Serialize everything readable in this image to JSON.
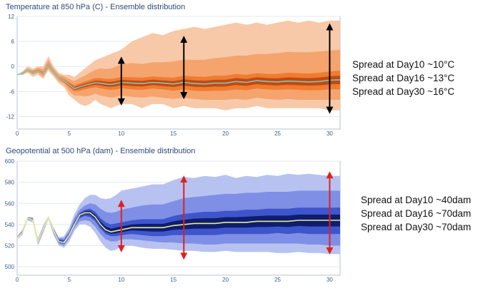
{
  "chart_data": [
    {
      "type": "area",
      "title": "Temperature at 850 hPa (C) - Ensemble distribution",
      "x": [
        0,
        0.5,
        1,
        1.5,
        2,
        2.5,
        3,
        3.5,
        4,
        4.5,
        5,
        5.5,
        6,
        6.5,
        7,
        7.5,
        8,
        8.5,
        9,
        9.5,
        10,
        11,
        12,
        13,
        14,
        15,
        16,
        17,
        18,
        19,
        20,
        21,
        22,
        23,
        24,
        25,
        26,
        27,
        28,
        29,
        30,
        31
      ],
      "xticks": [
        0,
        5,
        10,
        15,
        20,
        25,
        30
      ],
      "yticks": [
        12,
        6,
        0,
        -6,
        -12
      ],
      "ylim": [
        -15,
        12
      ],
      "xlim": [
        0,
        31
      ],
      "series": [
        {
          "role": "p0",
          "values": [
            -2,
            -2,
            -1.5,
            -2.5,
            -2,
            -3,
            -1,
            -2.5,
            -4,
            -5,
            -7,
            -8,
            -9,
            -9.5,
            -9,
            -8,
            -9,
            -9.5,
            -10,
            -9.5,
            -9,
            -9,
            -10,
            -9,
            -9,
            -10,
            -9.5,
            -10,
            -10,
            -10,
            -10.5,
            -10,
            -10,
            -9.5,
            -10,
            -10,
            -10,
            -10,
            -10,
            -10,
            -10.5,
            -10.5
          ]
        },
        {
          "role": "p10",
          "values": [
            -2,
            -2,
            -1.2,
            -2,
            -1.5,
            -2.5,
            -0.5,
            -2,
            -3.5,
            -4.2,
            -6,
            -7,
            -7,
            -7.2,
            -7,
            -6.5,
            -7,
            -7.2,
            -7.5,
            -7.3,
            -7,
            -7.3,
            -7.5,
            -7.2,
            -7.5,
            -7.8,
            -7.5,
            -7.8,
            -8,
            -8,
            -8,
            -7.8,
            -8,
            -7.5,
            -7.8,
            -8,
            -7.8,
            -8,
            -8,
            -8,
            -8,
            -8
          ]
        },
        {
          "role": "p25",
          "values": [
            -2,
            -1.8,
            -1,
            -1.8,
            -1.2,
            -2,
            0,
            -1.5,
            -3,
            -3.8,
            -5,
            -6,
            -5.8,
            -5.5,
            -5.2,
            -5,
            -5.2,
            -5.5,
            -5.6,
            -5.5,
            -5.2,
            -5.5,
            -5.6,
            -5.3,
            -5.5,
            -5.8,
            -5.5,
            -5.8,
            -5.9,
            -5.8,
            -5.8,
            -5.5,
            -5.7,
            -5.3,
            -5.5,
            -5.6,
            -5.5,
            -5.6,
            -5.7,
            -5.7,
            -5.5,
            -5.5
          ]
        },
        {
          "role": "p75",
          "values": [
            -2,
            -1.5,
            -0.7,
            -1.3,
            -0.7,
            -1.3,
            0.8,
            -1,
            -2.5,
            -3,
            -3.8,
            -4.5,
            -4,
            -3.6,
            -3.2,
            -2.8,
            -2.8,
            -3,
            -3,
            -2.8,
            -2.5,
            -2.6,
            -2.7,
            -2.4,
            -2.6,
            -2.7,
            -2.2,
            -2.4,
            -2.5,
            -2.2,
            -2.2,
            -1.8,
            -2,
            -1.6,
            -1.8,
            -1.8,
            -1.5,
            -1.6,
            -1.7,
            -1.5,
            -1.2,
            -1
          ]
        },
        {
          "role": "p90",
          "values": [
            -2,
            -1.4,
            -0.4,
            -0.9,
            -0.3,
            -0.7,
            1.6,
            -0.5,
            -2,
            -2.4,
            -3,
            -3.5,
            -2.8,
            -2.2,
            -1.5,
            -0.8,
            -0.5,
            -0.6,
            -0.5,
            0,
            0.5,
            0.8,
            0.6,
            1,
            1,
            1.2,
            1.6,
            1.6,
            1.6,
            2,
            2.2,
            2.6,
            2.6,
            3,
            3,
            3.2,
            3.5,
            3.4,
            3.4,
            3.6,
            3.8,
            4
          ]
        },
        {
          "role": "p100",
          "values": [
            -2,
            -1.2,
            0,
            -0.5,
            0,
            0,
            2.5,
            0,
            -1.5,
            -2,
            -2,
            -2.5,
            -1.5,
            -0.5,
            0.5,
            1.5,
            2,
            2.5,
            3,
            3.5,
            4,
            6,
            7,
            8,
            7.5,
            8.5,
            9,
            9.5,
            9,
            9.5,
            10,
            10.5,
            10,
            10.5,
            10,
            10.5,
            11,
            10.5,
            11,
            10.5,
            11,
            11
          ]
        },
        {
          "role": "median",
          "values": [
            -2,
            -1.6,
            -0.8,
            -1.6,
            -1,
            -1.7,
            0.4,
            -1.3,
            -2.8,
            -3.4,
            -4.4,
            -5.3,
            -4.9,
            -4.5,
            -4.2,
            -3.9,
            -4,
            -4.2,
            -4.3,
            -4.1,
            -3.8,
            -4,
            -4.1,
            -3.8,
            -4,
            -4.2,
            -3.8,
            -4.1,
            -4.2,
            -4,
            -4,
            -3.6,
            -3.8,
            -3.4,
            -3.6,
            -3.7,
            -3.5,
            -3.6,
            -3.7,
            -3.6,
            -3.3,
            -3.2
          ]
        }
      ],
      "spread_arrows": [
        {
          "x": 10,
          "ymin": -8.5,
          "ymax": 1.5
        },
        {
          "x": 16,
          "ymin": -7,
          "ymax": 6.5
        },
        {
          "x": 30,
          "ymin": -10.5,
          "ymax": 9.5
        }
      ],
      "annotations": [
        "Spread at Day10 ~10°C",
        "Spread at Day16 ~13°C",
        "Spread at Day30 ~16°C"
      ],
      "colors": {
        "outer": "#f7c9a8",
        "p10": "#f5a46d",
        "p25": "#f07c32",
        "core": "#c04a10",
        "median": "#7fc7c0",
        "arrow": "#000000"
      }
    },
    {
      "type": "area",
      "title": "Geopotential at 500 hPa (dam) - Ensemble distribution",
      "x": [
        0,
        0.5,
        1,
        1.5,
        2,
        2.5,
        3,
        3.5,
        4,
        4.5,
        5,
        5.5,
        6,
        6.5,
        7,
        7.5,
        8,
        8.5,
        9,
        9.5,
        10,
        11,
        12,
        13,
        14,
        15,
        16,
        17,
        18,
        19,
        20,
        21,
        22,
        23,
        24,
        25,
        26,
        27,
        28,
        29,
        30,
        31
      ],
      "xticks": [
        0,
        5,
        10,
        15,
        20,
        25,
        30
      ],
      "yticks": [
        600,
        580,
        560,
        540,
        520,
        500
      ],
      "ylim": [
        492,
        600
      ],
      "xlim": [
        0,
        31
      ],
      "series": [
        {
          "role": "p0",
          "values": [
            526,
            530,
            544,
            542,
            520,
            532,
            545,
            530,
            520,
            518,
            524,
            534,
            540,
            540,
            538,
            532,
            524,
            518,
            515,
            516,
            520,
            520,
            518,
            517,
            517,
            516,
            515,
            515,
            514,
            514,
            515,
            514,
            514,
            514,
            514,
            513,
            513,
            514,
            513,
            513,
            512,
            512
          ]
        },
        {
          "role": "p10",
          "values": [
            527,
            531,
            545,
            543,
            522,
            534,
            546,
            532,
            522,
            520,
            527,
            537,
            543,
            544,
            543,
            538,
            531,
            526,
            524,
            524,
            526,
            526,
            525,
            524,
            523,
            523,
            522,
            522,
            521,
            521,
            522,
            522,
            522,
            522,
            522,
            522,
            522,
            522,
            521,
            521,
            520,
            520
          ]
        },
        {
          "role": "p25",
          "values": [
            527,
            532,
            545,
            544,
            523,
            535,
            546,
            533,
            523,
            522,
            529,
            539,
            546,
            548,
            547,
            543,
            536,
            531,
            529,
            529,
            530,
            531,
            530,
            529,
            529,
            530,
            530,
            530,
            530,
            530,
            531,
            531,
            531,
            531,
            531,
            532,
            531,
            532,
            531,
            531,
            531,
            531
          ]
        },
        {
          "role": "p75",
          "values": [
            528,
            533,
            546,
            545,
            525,
            537,
            547,
            535,
            526,
            525,
            532,
            543,
            551,
            554,
            555,
            552,
            546,
            542,
            540,
            541,
            542,
            544,
            545,
            545,
            545,
            548,
            550,
            551,
            552,
            552,
            553,
            553,
            554,
            554,
            555,
            555,
            555,
            556,
            556,
            556,
            556,
            556
          ]
        },
        {
          "role": "p90",
          "values": [
            528,
            534,
            547,
            546,
            526,
            538,
            548,
            536,
            527,
            527,
            534,
            546,
            554,
            558,
            560,
            559,
            555,
            552,
            551,
            552,
            554,
            556,
            558,
            559,
            559,
            562,
            565,
            566,
            567,
            568,
            569,
            569,
            570,
            570,
            571,
            571,
            571,
            572,
            572,
            572,
            572,
            572
          ]
        },
        {
          "role": "p100",
          "values": [
            529,
            535,
            547,
            547,
            527,
            539,
            548,
            537,
            528,
            529,
            537,
            550,
            559,
            565,
            568,
            568,
            565,
            564,
            565,
            568,
            572,
            574,
            576,
            578,
            578,
            582,
            585,
            584,
            586,
            585,
            587,
            584,
            586,
            585,
            587,
            586,
            588,
            587,
            588,
            587,
            586,
            586
          ]
        },
        {
          "role": "median",
          "values": [
            527,
            532,
            546,
            544,
            524,
            536,
            547,
            534,
            524,
            523,
            530,
            540,
            549,
            551,
            551,
            547,
            540,
            535,
            533,
            534,
            535,
            537,
            537,
            537,
            537,
            539,
            540,
            541,
            541,
            541,
            542,
            542,
            542,
            543,
            543,
            543,
            543,
            544,
            544,
            544,
            544,
            544
          ]
        }
      ],
      "spread_arrows": [
        {
          "x": 10,
          "ymin": 517,
          "ymax": 560
        },
        {
          "x": 16,
          "ymin": 510,
          "ymax": 583
        },
        {
          "x": 30,
          "ymin": 515,
          "ymax": 587
        }
      ],
      "annotations": [
        "Spread at Day10 ~40dam",
        "Spread at Day16 ~70dam",
        "Spread at Day30 ~70dam"
      ],
      "colors": {
        "outer": "#b8c2f0",
        "p10": "#7f8fe6",
        "p25": "#3e55cc",
        "core": "#0f1d6e",
        "median": "#e6ee8e",
        "arrow": "#e02020"
      }
    }
  ]
}
